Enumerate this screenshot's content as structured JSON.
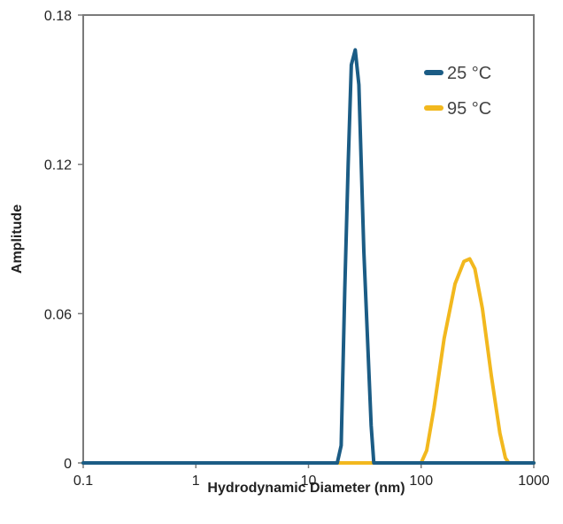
{
  "chart_data": {
    "type": "line",
    "xlabel": "Hydrodynamic Diameter (nm)",
    "ylabel": "Amplitude",
    "x_scale": "log",
    "xlim": [
      0.1,
      1000
    ],
    "ylim": [
      0,
      0.18
    ],
    "x_ticks": [
      "0.1",
      "1",
      "10",
      "100",
      "1000"
    ],
    "y_ticks": [
      "0",
      "0.06",
      "0.12",
      "0.18"
    ],
    "legend_position": "top-right",
    "grid": false,
    "series": [
      {
        "name": "25 °C",
        "color": "#1b5c85",
        "x": [
          0.1,
          1,
          10,
          18,
          19.5,
          21,
          22.5,
          24,
          26,
          28,
          31,
          36,
          38,
          100,
          1000
        ],
        "y": [
          0,
          0,
          0,
          0,
          0.007,
          0.07,
          0.12,
          0.16,
          0.166,
          0.152,
          0.085,
          0.015,
          0,
          0,
          0
        ]
      },
      {
        "name": "95 °C",
        "color": "#f2b81e",
        "x": [
          0.1,
          1,
          10,
          100,
          112,
          130,
          160,
          200,
          240,
          270,
          300,
          350,
          420,
          500,
          560,
          600,
          1000
        ],
        "y": [
          0,
          0,
          0,
          0,
          0.005,
          0.022,
          0.05,
          0.072,
          0.081,
          0.082,
          0.078,
          0.062,
          0.035,
          0.012,
          0.002,
          0,
          0
        ]
      }
    ]
  }
}
